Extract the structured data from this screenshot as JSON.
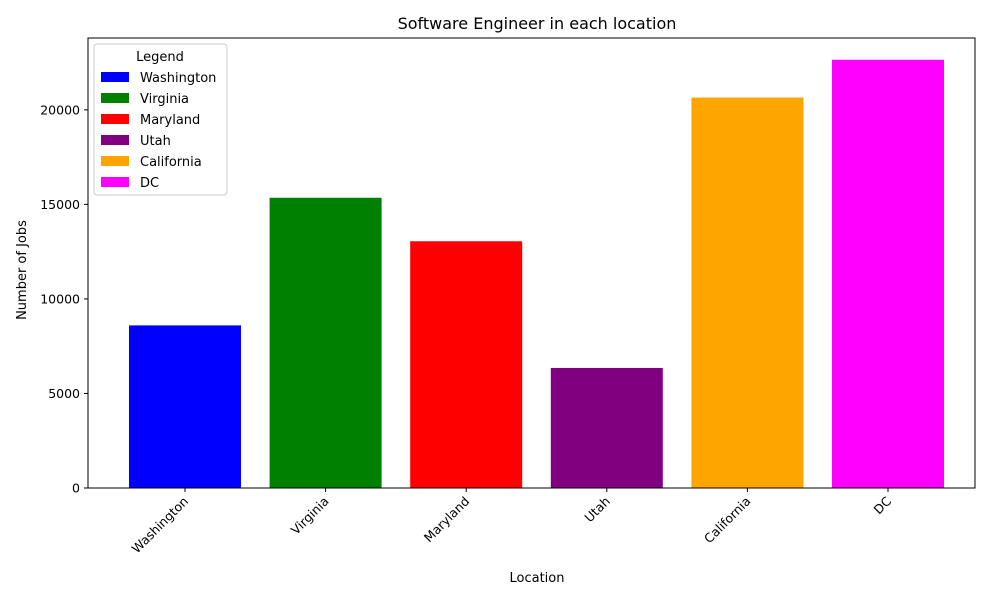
{
  "chart_data": {
    "type": "bar",
    "title": "Software Engineer in each location",
    "xlabel": "Location",
    "ylabel": "Number of Jobs",
    "categories": [
      "Washington",
      "Virginia",
      "Maryland",
      "Utah",
      "California",
      "DC"
    ],
    "values": [
      8600,
      15350,
      13050,
      6350,
      20650,
      22650
    ],
    "colors": [
      "#0000ff",
      "#008000",
      "#ff0000",
      "#800080",
      "#ffa500",
      "#ff00ff"
    ],
    "ylim": [
      0,
      23800
    ],
    "yticks": [
      0,
      5000,
      10000,
      15000,
      20000
    ],
    "grid": false,
    "legend": {
      "title": "Legend",
      "placement": "top-left",
      "entries": [
        "Washington",
        "Virginia",
        "Maryland",
        "Utah",
        "California",
        "DC"
      ]
    },
    "xtick_rotation": 45
  }
}
